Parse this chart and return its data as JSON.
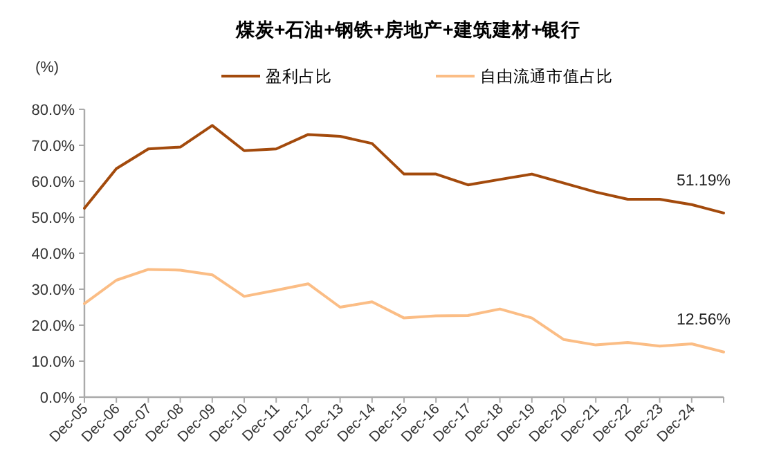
{
  "chart_data": {
    "type": "line",
    "title": "煤炭+石油+钢铁+房地产+建筑建材+银行",
    "ylabel": "(%)",
    "categories": [
      "Dec-05",
      "Dec-06",
      "Dec-07",
      "Dec-08",
      "Dec-09",
      "Dec-10",
      "Dec-11",
      "Dec-12",
      "Dec-13",
      "Dec-14",
      "Dec-15",
      "Dec-16",
      "Dec-17",
      "Dec-18",
      "Dec-19",
      "Dec-20",
      "Dec-21",
      "Dec-22",
      "Dec-23",
      "Dec-24",
      null
    ],
    "series": [
      {
        "name": "盈利占比",
        "color": "#a34a0c",
        "values": [
          52.5,
          63.5,
          69,
          69.5,
          75.5,
          68.5,
          69,
          73,
          72.5,
          70.5,
          62,
          62,
          59,
          60.5,
          62,
          59.5,
          57,
          55,
          55,
          53.5,
          51.19
        ]
      },
      {
        "name": "自由流通市值占比",
        "color": "#fbbd85",
        "values": [
          26,
          32.5,
          35.5,
          35.3,
          34,
          28,
          29.7,
          31.5,
          25,
          26.5,
          22,
          22.6,
          22.7,
          24.5,
          22,
          16,
          14.5,
          15.2,
          14.2,
          14.8,
          12.56
        ]
      }
    ],
    "ylim": [
      0,
      80
    ],
    "yticks": [
      {
        "value": 0,
        "label": "0.0%"
      },
      {
        "value": 10,
        "label": "10.0%"
      },
      {
        "value": 20,
        "label": "20.0%"
      },
      {
        "value": 30,
        "label": "30.0%"
      },
      {
        "value": 40,
        "label": "40.0%"
      },
      {
        "value": 50,
        "label": "50.0%"
      },
      {
        "value": 60,
        "label": "60.0%"
      },
      {
        "value": 70,
        "label": "70.0%"
      },
      {
        "value": 80,
        "label": "80.0%"
      }
    ],
    "annotations": [
      {
        "text": "51.19%",
        "y": 51.19
      },
      {
        "text": "12.56%",
        "y": 12.56
      }
    ],
    "legend": "top",
    "grid": false,
    "marker": "none",
    "line_style": "solid"
  }
}
